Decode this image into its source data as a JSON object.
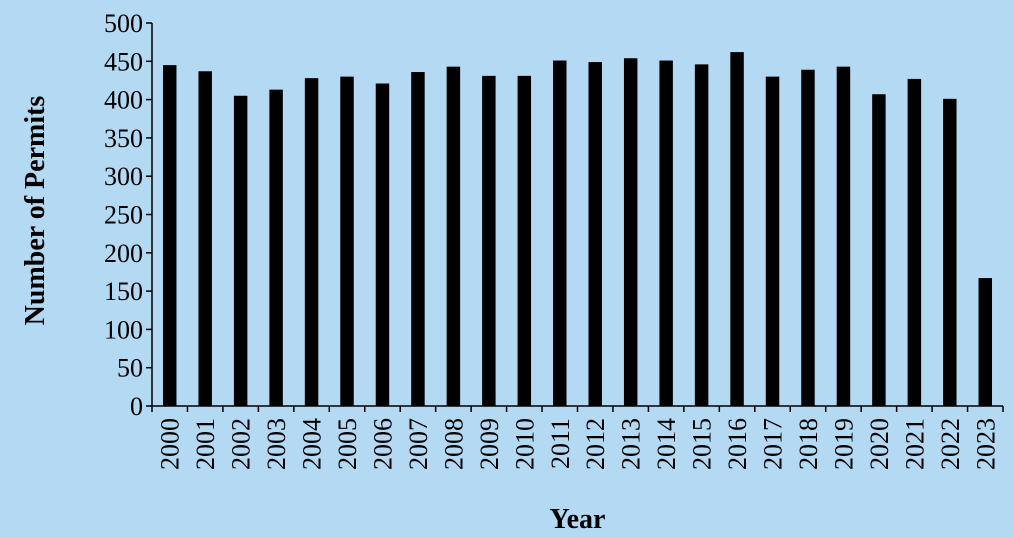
{
  "chart_data": {
    "type": "bar",
    "title": "",
    "xlabel": "Year",
    "ylabel": "Number of Permits",
    "ylim": [
      0,
      500
    ],
    "yticks": [
      0,
      50,
      100,
      150,
      200,
      250,
      300,
      350,
      400,
      450,
      500
    ],
    "categories": [
      "2000",
      "2001",
      "2002",
      "2003",
      "2004",
      "2005",
      "2006",
      "2007",
      "2008",
      "2009",
      "2010",
      "2011",
      "2012",
      "2013",
      "2014",
      "2015",
      "2016",
      "2017",
      "2018",
      "2019",
      "2020",
      "2021",
      "2022",
      "2023"
    ],
    "values": [
      445,
      437,
      405,
      413,
      428,
      430,
      421,
      436,
      443,
      431,
      431,
      451,
      449,
      454,
      451,
      446,
      462,
      430,
      439,
      443,
      407,
      427,
      401,
      167
    ],
    "bar_color": "#000000",
    "background_color": "#b3d9f3",
    "grid": false,
    "legend": "none"
  }
}
